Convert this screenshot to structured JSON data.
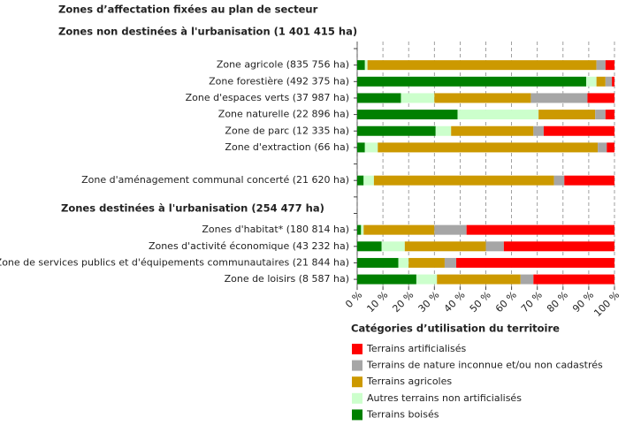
{
  "chart_data": {
    "type": "stacked-barh",
    "title": "Zones d’affectation fixées au plan de secteur",
    "annotations": [
      "Zones non destinées à l'urbanisation (1 401 415 ha)",
      "Zones destinées à l'urbanisation (254 477 ha)"
    ],
    "legend_title": "Catégories d’utilisation du territoire",
    "categories": [
      null,
      "Zone agricole (835 756 ha)",
      "Zone forestière (492 375 ha)",
      "Zone d'espaces verts (37 987 ha)",
      "Zone naturelle (22 896 ha)",
      "Zone de parc (12 335 ha)",
      "Zone d'extraction (66 ha)",
      null,
      "Zone d'aménagement communal concerté (21 620 ha)",
      null,
      null,
      "Zones d'habitat* (180 814 ha)",
      "Zones d'activité économique (43 232 ha)",
      "Zone de services publics et d'équipements communautaires (21 844 ha)",
      "Zone de loisirs (8 587 ha)"
    ],
    "series": [
      {
        "name": "Terrains artificialisés",
        "color": "#ff0000",
        "values": [
          null,
          3.5,
          1,
          10.5,
          3.5,
          27.5,
          3,
          null,
          19.5,
          null,
          null,
          57.5,
          43,
          61.5,
          31.5
        ]
      },
      {
        "name": "Terrains de nature inconnue et/ou non cadastrés",
        "color": "#a6a6a6",
        "values": [
          null,
          3.5,
          2.5,
          22,
          4,
          4,
          3.5,
          null,
          4,
          null,
          null,
          12.5,
          7,
          4.5,
          5
        ]
      },
      {
        "name": "Terrains agricoles",
        "color": "#cc9900",
        "values": [
          null,
          89,
          3.5,
          37.5,
          22,
          32,
          85.5,
          null,
          70,
          null,
          null,
          27.5,
          31.5,
          14,
          32.5
        ]
      },
      {
        "name": "Autres terrains non artificialisés",
        "color": "#ccffcc",
        "values": [
          null,
          1,
          4,
          13,
          31.5,
          6,
          5,
          null,
          4,
          null,
          null,
          1,
          9,
          4,
          8
        ]
      },
      {
        "name": "Terrains boisés",
        "color": "#008000",
        "values": [
          null,
          3,
          89,
          17,
          39,
          30.5,
          3,
          null,
          2.5,
          null,
          null,
          1.5,
          9.5,
          16,
          23
        ]
      }
    ],
    "xlim": [
      0,
      100
    ],
    "xticks": [
      {
        "value": 0,
        "label": "0 %"
      },
      {
        "value": 10,
        "label": "10 %"
      },
      {
        "value": 20,
        "label": "20 %"
      },
      {
        "value": 30,
        "label": "30 %"
      },
      {
        "value": 40,
        "label": "40 %"
      },
      {
        "value": 50,
        "label": "50 %"
      },
      {
        "value": 60,
        "label": "60 %"
      },
      {
        "value": 70,
        "label": "70 %"
      },
      {
        "value": 80,
        "label": "80 %"
      },
      {
        "value": 90,
        "label": "90 %"
      },
      {
        "value": 100,
        "label": "100 %"
      }
    ],
    "grid": true
  }
}
